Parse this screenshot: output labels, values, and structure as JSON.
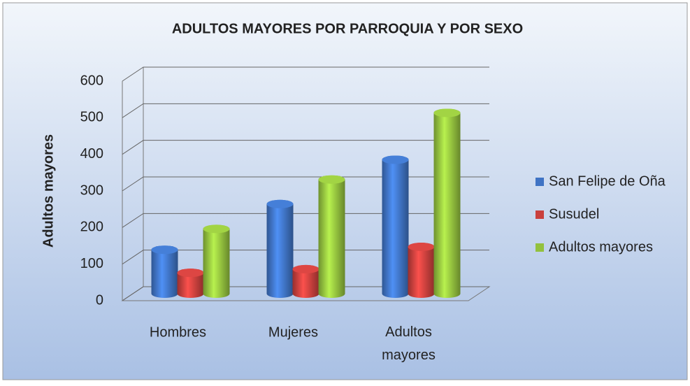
{
  "chart_data": {
    "type": "bar3d",
    "title": "ADULTOS MAYORES POR PARROQUIA Y POR SEXO",
    "y_label": "Adultos mayores",
    "categories": [
      "Hombres",
      "Mujeres",
      "Adultos mayores"
    ],
    "series": [
      {
        "name": "San Felipe de Oña",
        "color": "#3f73c4",
        "values": [
          120,
          245,
          366
        ]
      },
      {
        "name": "Susudel",
        "color": "#c9403d",
        "values": [
          57,
          67,
          128
        ]
      },
      {
        "name": "Adultos mayores",
        "color": "#93c13e",
        "values": [
          177,
          312,
          494
        ]
      }
    ],
    "ylim": [
      0,
      600
    ],
    "yticks": [
      0,
      100,
      200,
      300,
      400,
      500,
      600
    ],
    "grid": true,
    "legend": "right"
  }
}
